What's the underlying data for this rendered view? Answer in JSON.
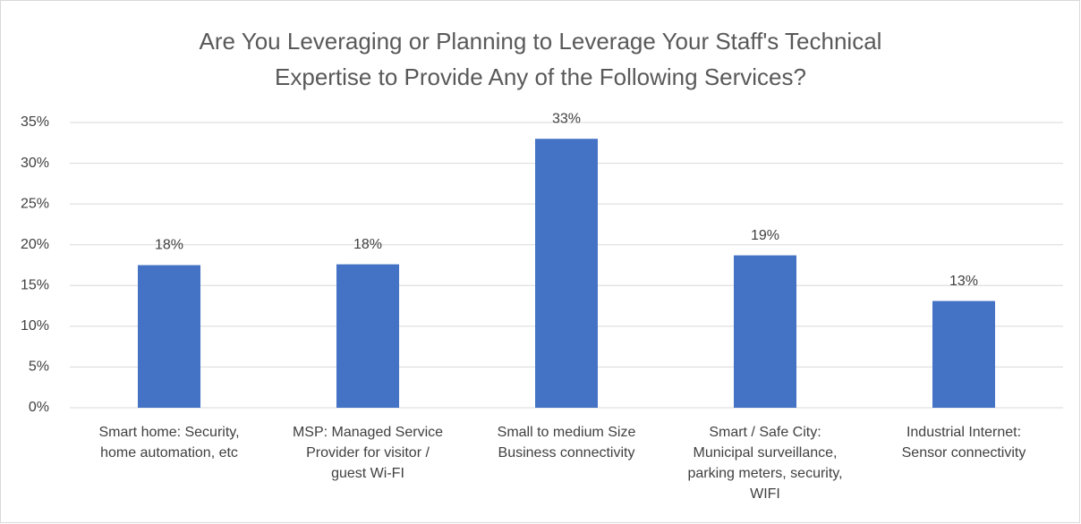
{
  "chart_data": {
    "type": "bar",
    "title": "Are You Leveraging or Planning to Leverage Your Staff's Technical\nExpertise to Provide Any of the Following Services?",
    "categories": [
      "Smart home:  Security,\nhome automation, etc",
      "MSP:  Managed Service\nProvider for visitor /\nguest Wi-FI",
      "Small to medium Size\nBusiness connectivity",
      "Smart / Safe City:\nMunicipal surveillance,\nparking meters, security,\nWIFI",
      "Industrial Internet:\nSensor connectivity"
    ],
    "values": [
      17.5,
      17.6,
      33,
      18.7,
      13.1
    ],
    "value_labels": [
      "18%",
      "18%",
      "33%",
      "19%",
      "13%"
    ],
    "color": "#4472c4",
    "ylim": [
      0,
      35
    ],
    "yticks": [
      {
        "value": 0,
        "label": "0%"
      },
      {
        "value": 5,
        "label": "5%"
      },
      {
        "value": 10,
        "label": "10%"
      },
      {
        "value": 15,
        "label": "15%"
      },
      {
        "value": 20,
        "label": "20%"
      },
      {
        "value": 25,
        "label": "25%"
      },
      {
        "value": 30,
        "label": "30%"
      },
      {
        "value": 35,
        "label": "35%"
      }
    ],
    "grid": true
  }
}
